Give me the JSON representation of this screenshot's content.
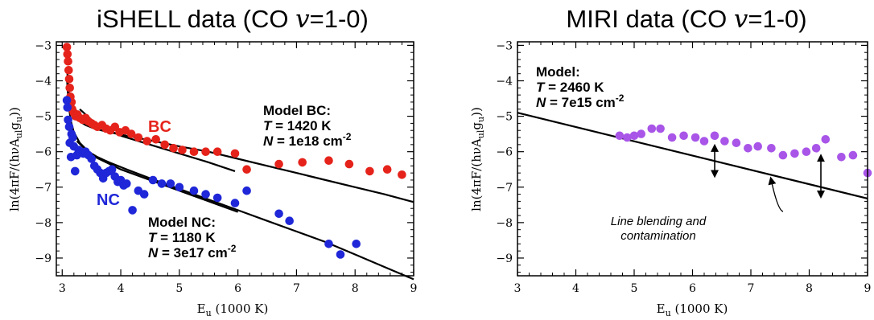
{
  "chart_data": [
    {
      "type": "scatter",
      "title": "iSHELL data (CO v=1-0)",
      "title_parts": {
        "prefix": "iSHELL data (CO ",
        "nu": "v",
        "suffix": "=1-0)"
      },
      "xlabel": "E_u (1000 K)",
      "xlabel_parts": {
        "main": "E",
        "sub": "u",
        "rest": " (1000 K)"
      },
      "ylabel": "ln(4πF/(hνA_ul g_u))",
      "ylabel_parts": {
        "pre": "ln(4πF/(hνA",
        "sub1": "ul",
        "mid": "g",
        "sub2": "u",
        "post": "))"
      },
      "xlim": [
        2.9,
        9.0
      ],
      "ylim": [
        -9.5,
        -2.9
      ],
      "xticks": [
        3,
        4,
        5,
        6,
        7,
        8,
        9
      ],
      "yticks": [
        -3,
        -4,
        -5,
        -6,
        -7,
        -8,
        -9
      ],
      "xtick_labels": [
        "3",
        "4",
        "5",
        "6",
        "7",
        "8",
        "9"
      ],
      "ytick_labels": [
        "−3",
        "−4",
        "−5",
        "−6",
        "−7",
        "−8",
        "−9"
      ],
      "series": [
        {
          "label": "BC",
          "color": "#e5231b",
          "x": [
            3.08,
            3.09,
            3.1,
            3.11,
            3.12,
            3.13,
            3.14,
            3.16,
            3.17,
            3.2,
            3.23,
            3.26,
            3.3,
            3.35,
            3.4,
            3.45,
            3.5,
            3.55,
            3.6,
            3.68,
            3.75,
            3.82,
            3.9,
            3.98,
            4.08,
            4.18,
            4.3,
            4.45,
            4.6,
            4.75,
            4.9,
            5.05,
            5.25,
            5.45,
            5.65,
            5.95,
            6.15,
            6.7,
            7.1,
            7.55,
            7.9,
            8.25,
            8.55,
            8.8
          ],
          "y": [
            -3.05,
            -3.25,
            -3.45,
            -3.7,
            -3.95,
            -4.2,
            -4.45,
            -4.6,
            -4.8,
            -4.9,
            -5.0,
            -4.95,
            -5.05,
            -5.1,
            -5.05,
            -5.15,
            -5.2,
            -5.25,
            -5.3,
            -5.25,
            -5.35,
            -5.4,
            -5.3,
            -5.45,
            -5.4,
            -5.5,
            -5.6,
            -5.7,
            -5.65,
            -5.8,
            -5.9,
            -5.95,
            -6.0,
            -6.0,
            -6.0,
            -6.05,
            -6.5,
            -6.35,
            -6.3,
            -6.25,
            -6.35,
            -6.55,
            -6.5,
            -6.65
          ]
        },
        {
          "label": "NC",
          "color": "#1f27d8",
          "x": [
            3.08,
            3.09,
            3.1,
            3.12,
            3.13,
            3.15,
            3.16,
            3.18,
            3.2,
            3.22,
            3.25,
            3.28,
            3.32,
            3.36,
            3.4,
            3.45,
            3.5,
            3.55,
            3.6,
            3.65,
            3.7,
            3.75,
            3.8,
            3.85,
            3.9,
            3.95,
            4.0,
            4.05,
            4.1,
            4.2,
            4.3,
            4.4,
            4.55,
            4.7,
            4.85,
            5.0,
            5.25,
            5.45,
            5.65,
            5.95,
            6.15,
            6.7,
            6.88,
            7.55,
            7.75,
            8.02
          ],
          "y": [
            -4.55,
            -4.75,
            -5.1,
            -5.3,
            -5.75,
            -6.15,
            -5.5,
            -5.6,
            -5.85,
            -6.55,
            -6.1,
            -5.95,
            -6.0,
            -6.05,
            -6.0,
            -6.1,
            -6.2,
            -6.4,
            -6.5,
            -6.6,
            -6.75,
            -6.6,
            -6.55,
            -6.5,
            -6.7,
            -6.85,
            -6.8,
            -6.95,
            -6.9,
            -7.65,
            -7.1,
            -7.2,
            -6.8,
            -6.9,
            -6.9,
            -7.0,
            -7.1,
            -7.2,
            -7.3,
            -7.45,
            -7.1,
            -7.75,
            -7.95,
            -8.6,
            -8.9,
            -8.6
          ]
        }
      ],
      "model_curves": [
        {
          "label": "Model BC",
          "x": [
            3.08,
            3.11,
            3.15,
            3.2,
            3.3,
            3.4,
            3.55,
            3.8,
            4.1,
            4.5,
            5.0,
            5.5,
            6.0,
            6.5,
            7.0,
            7.5,
            8.0,
            8.5,
            9.0
          ],
          "y": [
            -3.6,
            -4.3,
            -4.75,
            -4.95,
            -5.15,
            -5.25,
            -5.35,
            -5.45,
            -5.55,
            -5.68,
            -5.85,
            -6.0,
            -6.2,
            -6.4,
            -6.6,
            -6.8,
            -7.0,
            -7.2,
            -7.42
          ]
        },
        {
          "label": "Model BC (lower)",
          "x": [
            3.3,
            3.6,
            4.0,
            4.5,
            5.0,
            5.5,
            5.95
          ],
          "y": [
            -4.8,
            -5.25,
            -5.55,
            -5.8,
            -6.05,
            -6.3,
            -6.55
          ]
        },
        {
          "label": "Model NC",
          "x": [
            3.08,
            3.11,
            3.15,
            3.2,
            3.3,
            3.45,
            3.6,
            3.8,
            4.1,
            4.5,
            5.0,
            5.5,
            6.0,
            6.5,
            7.0,
            7.5,
            8.0,
            8.5,
            9.0
          ],
          "y": [
            -3.9,
            -4.7,
            -5.15,
            -5.45,
            -5.75,
            -6.0,
            -6.15,
            -6.3,
            -6.5,
            -6.75,
            -7.05,
            -7.35,
            -7.65,
            -7.95,
            -8.25,
            -8.55,
            -8.9,
            -9.25,
            -9.6
          ]
        },
        {
          "label": "Model NC (lower)",
          "x": [
            3.25,
            3.5,
            4.0,
            4.5,
            5.0,
            5.5,
            6.0
          ],
          "y": [
            -5.7,
            -6.1,
            -6.5,
            -6.8,
            -7.1,
            -7.4,
            -7.7
          ]
        }
      ],
      "annotations": {
        "model_bc_title": "Model BC:",
        "model_bc_T": "T = 1420 K",
        "model_bc_N": "N = 1e18 cm",
        "model_nc_title": "Model NC:",
        "model_nc_T": "T = 1180 K",
        "model_nc_N": "N = 3e17 cm",
        "cm_exponent": "-2",
        "t_sym": "T",
        "n_sym": "N",
        "bc_T_rest": " = 1420 K",
        "bc_N_rest": " = 1e18 cm",
        "nc_T_rest": " = 1180 K",
        "nc_N_rest": " = 3e17 cm"
      }
    },
    {
      "type": "scatter",
      "title": "MIRI data (CO v=1-0)",
      "title_parts": {
        "prefix": "MIRI data (CO ",
        "nu": "v",
        "suffix": "=1-0)"
      },
      "xlabel": "E_u (1000 K)",
      "ylabel": "ln(4πF/(hνA_ul g_u))",
      "xlim": [
        3.0,
        9.0
      ],
      "ylim": [
        -9.5,
        -2.9
      ],
      "xticks": [
        3,
        4,
        5,
        6,
        7,
        8,
        9
      ],
      "yticks": [
        -3,
        -4,
        -5,
        -6,
        -7,
        -8,
        -9
      ],
      "xtick_labels": [
        "3",
        "4",
        "5",
        "6",
        "7",
        "8",
        "9"
      ],
      "ytick_labels": [
        "−3",
        "−4",
        "−5",
        "−6",
        "−7",
        "−8",
        "−9"
      ],
      "series": [
        {
          "label": "MIRI",
          "color": "#a855e8",
          "x": [
            4.75,
            4.88,
            5.0,
            5.12,
            5.3,
            5.45,
            5.65,
            5.85,
            6.05,
            6.2,
            6.38,
            6.55,
            6.75,
            6.95,
            7.12,
            7.35,
            7.55,
            7.75,
            7.95,
            8.12,
            8.28,
            8.55,
            8.75,
            9.0
          ],
          "y": [
            -5.55,
            -5.6,
            -5.55,
            -5.5,
            -5.35,
            -5.35,
            -5.6,
            -5.55,
            -5.6,
            -5.7,
            -5.55,
            -5.7,
            -5.75,
            -5.9,
            -5.85,
            -5.9,
            -6.1,
            -6.05,
            -6.0,
            -5.9,
            -5.65,
            -6.15,
            -6.1,
            -6.6
          ]
        }
      ],
      "model_curves": [
        {
          "label": "Model",
          "x": [
            3.0,
            9.0
          ],
          "y": [
            -4.9,
            -7.32
          ]
        }
      ],
      "arrows": [
        {
          "x": 6.38,
          "y1": -5.8,
          "y2": -6.72
        },
        {
          "x": 8.2,
          "y1": -6.08,
          "y2": -7.3
        }
      ],
      "annotations": {
        "model_title": "Model:",
        "t_sym": "T",
        "T_rest": " = 2460 K",
        "n_sym": "N",
        "N_rest": " = 7e15 cm",
        "cm_exponent": "-2",
        "blend_line1": "Line blending and",
        "blend_line2": "contamination"
      },
      "blend_pointer": {
        "from": [
          7.0,
          -7.78
        ],
        "to": [
          7.35,
          -6.72
        ]
      }
    }
  ]
}
